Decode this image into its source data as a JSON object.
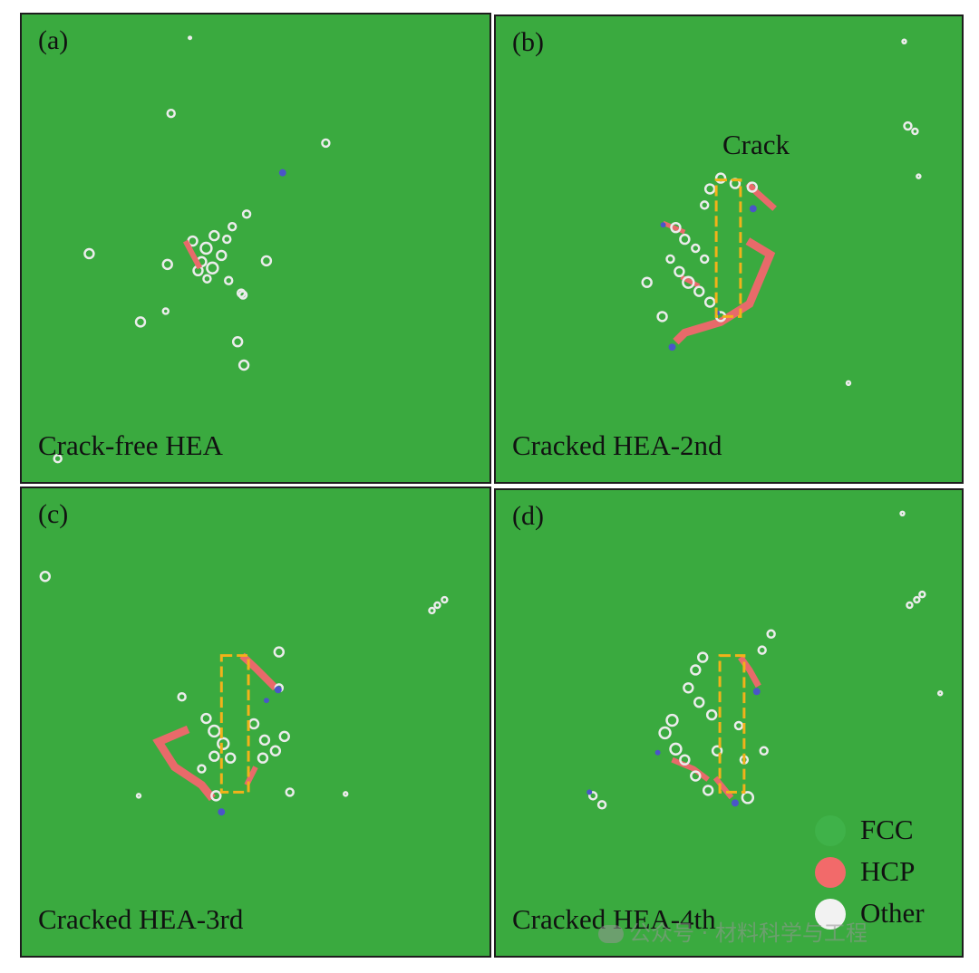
{
  "panels": [
    {
      "label": "(a)",
      "caption": "Crack-free HEA"
    },
    {
      "label": "(b)",
      "caption": "Cracked HEA-2nd",
      "annotation": "Crack"
    },
    {
      "label": "(c)",
      "caption": "Cracked HEA-3rd"
    },
    {
      "label": "(d)",
      "caption": "Cracked HEA-4th"
    }
  ],
  "legend": [
    {
      "label": "FCC",
      "color": "#3fb249"
    },
    {
      "label": "HCP",
      "color": "#f26a6a"
    },
    {
      "label": "Other",
      "color": "#f2f2f2"
    }
  ],
  "watermark": "公众号 · 材料科学与工程",
  "colors": {
    "matrix": "#3aaa3f",
    "hcp": "#e86a6a",
    "other": "#ececec",
    "crack_box": "#f2b21a",
    "defect_blue": "#4a55c8"
  }
}
